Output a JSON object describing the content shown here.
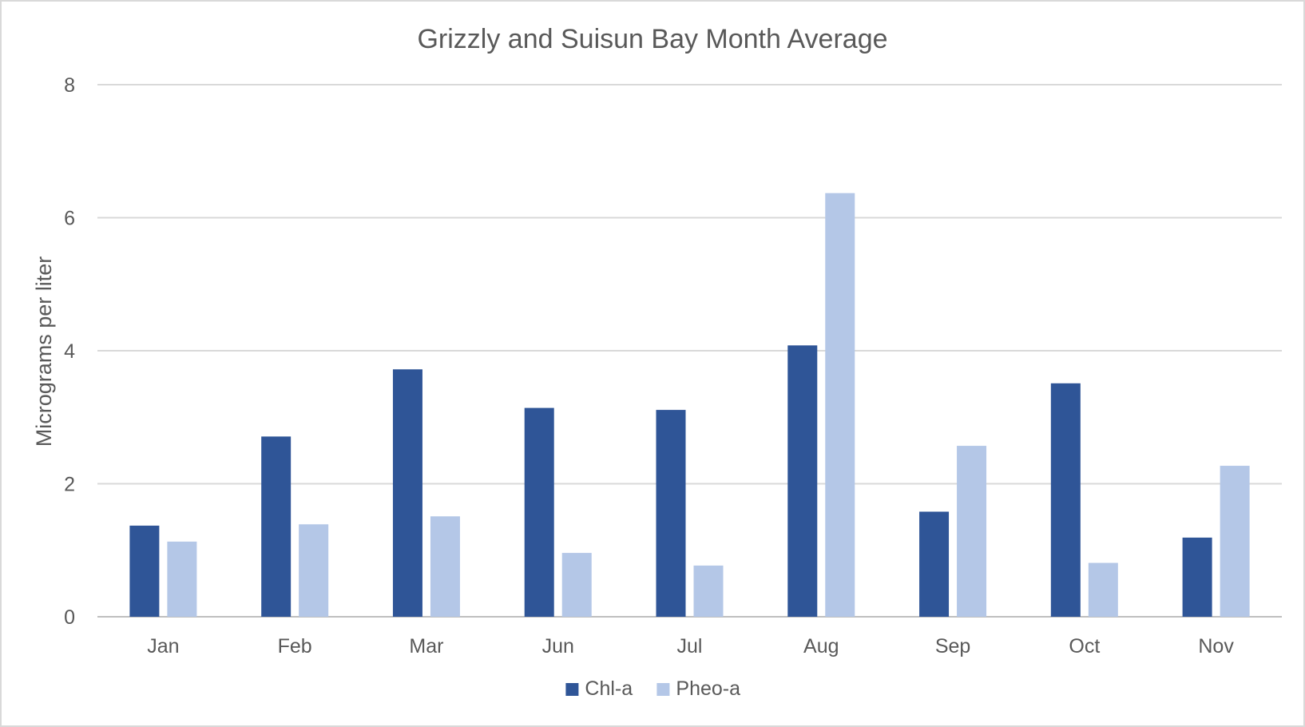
{
  "chart_data": {
    "type": "bar",
    "title": "Grizzly and Suisun Bay Month Average",
    "xlabel": "",
    "ylabel": "Micrograms per liter",
    "categories": [
      "Jan",
      "Feb",
      "Mar",
      "Jun",
      "Jul",
      "Aug",
      "Sep",
      "Oct",
      "Nov"
    ],
    "series": [
      {
        "name": "Chl-a",
        "color": "#2f5597",
        "values": [
          1.37,
          2.71,
          3.72,
          3.14,
          3.11,
          4.08,
          1.58,
          3.51,
          1.19
        ]
      },
      {
        "name": "Pheo-a",
        "color": "#b4c7e7",
        "values": [
          1.13,
          1.39,
          1.51,
          0.96,
          0.77,
          6.37,
          2.57,
          0.81,
          2.27
        ]
      }
    ],
    "ylim": [
      0,
      8
    ],
    "yticks": [
      0,
      2,
      4,
      6,
      8
    ],
    "grid": true,
    "legend": "bottom-center"
  }
}
